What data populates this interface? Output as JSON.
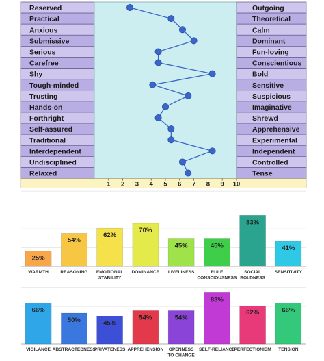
{
  "chart_data": [
    {
      "type": "line",
      "orientation": "horizontal",
      "left_labels": [
        "Reserved",
        "Practical",
        "Anxious",
        "Submissive",
        "Serious",
        "Carefree",
        "Shy",
        "Tough-minded",
        "Trusting",
        "Hands-on",
        "Forthright",
        "Self-assured",
        "Traditional",
        "Interdependent",
        "Undisciplined",
        "Relaxed"
      ],
      "right_labels": [
        "Outgoing",
        "Theoretical",
        "Calm",
        "Dominant",
        "Fun-loving",
        "Conscientious",
        "Bold",
        "Sensitive",
        "Suspicious",
        "Imaginative",
        "Shrewd",
        "Apprehensive",
        "Experimental",
        "Independent",
        "Controlled",
        "Tense"
      ],
      "values": [
        2.5,
        5.4,
        6.2,
        7.0,
        4.5,
        4.5,
        8.3,
        4.1,
        6.6,
        5.0,
        4.5,
        5.4,
        5.4,
        8.3,
        6.2,
        6.6
      ],
      "xlim": [
        0,
        10
      ],
      "x_ticks": [
        "1",
        "2",
        "3",
        "4",
        "5",
        "6",
        "7",
        "8",
        "9",
        "10"
      ],
      "colors": {
        "label_bg": "#cfc6ee",
        "label_bg_alt": "#b9aee3",
        "plot_bg": "#cdeef0",
        "axis_bg": "#fbf3c2",
        "line": "#3a66c9",
        "point": "#3a66c9"
      }
    },
    {
      "type": "bar",
      "categories": [
        "WARMTH",
        "REASONING",
        "EMOTIONAL STABILITY",
        "DOMINANCE",
        "LIVELINESS",
        "RULE CONSCIOUSNESS",
        "SOCIAL BOLDNESS",
        "SENSITIVITY"
      ],
      "values": [
        25,
        54,
        62,
        70,
        45,
        45,
        83,
        41
      ],
      "value_labels": [
        "25%",
        "54%",
        "62%",
        "70%",
        "45%",
        "45%",
        "83%",
        "41%"
      ],
      "ylim": [
        0,
        100
      ],
      "grid": true,
      "colors": [
        "#f7a64a",
        "#f7c744",
        "#f5e14a",
        "#e4ea4a",
        "#9fe24a",
        "#3fce4a",
        "#2aa38f",
        "#2fc8e5"
      ]
    },
    {
      "type": "bar",
      "categories": [
        "VIGILANCE",
        "ABSTRACTEDNESS",
        "PRIVATENESS",
        "APPREHENSION",
        "OPENNESS TO CHANGE",
        "SELF-RELIANCE",
        "PERFECTIONISM",
        "TENSION"
      ],
      "values": [
        66,
        50,
        45,
        54,
        54,
        83,
        62,
        66
      ],
      "value_labels": [
        "66%",
        "50%",
        "45%",
        "54%",
        "54%",
        "83%",
        "62%",
        "66%"
      ],
      "ylim": [
        0,
        100
      ],
      "grid": true,
      "colors": [
        "#2fa6e8",
        "#3a78e0",
        "#3d4fd6",
        "#e23a4a",
        "#8a45d8",
        "#c23ad6",
        "#e83a78",
        "#34c87a"
      ]
    }
  ]
}
